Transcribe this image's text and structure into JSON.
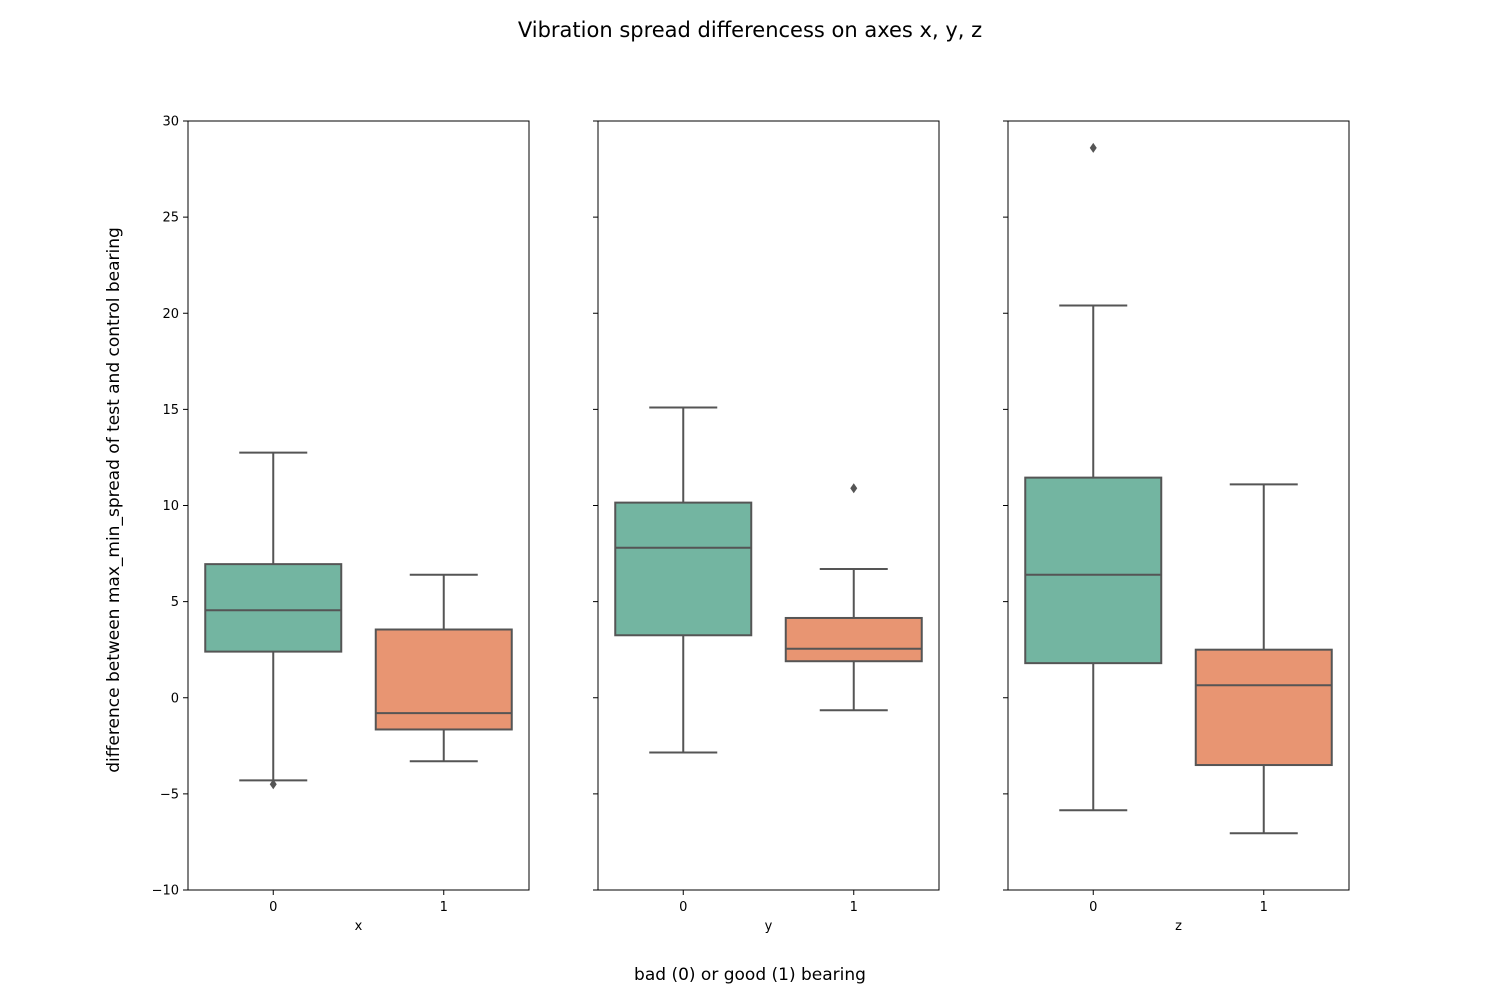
{
  "chart_data": {
    "type": "box",
    "title": "Vibration spread differencess on axes x, y, z",
    "xlabel": "bad (0) or good (1) bearing",
    "ylabel": "difference between max_min_spread of test and control bearing",
    "ylim": [
      -10,
      30
    ],
    "yticks": [
      -10,
      -5,
      0,
      5,
      10,
      15,
      20,
      25,
      30
    ],
    "ytick_labels": [
      "−10",
      "−5",
      "0",
      "5",
      "10",
      "15",
      "20",
      "25",
      "30"
    ],
    "shared_y": true,
    "grid": false,
    "categories": [
      "0",
      "1"
    ],
    "colors": {
      "bad": "#73b5a1",
      "good": "#e89572",
      "line": "#555555"
    },
    "panels": [
      {
        "xlabel": "x",
        "boxes": [
          {
            "category": "0",
            "whisker_low": -4.3,
            "q1": 2.4,
            "median": 4.55,
            "q3": 6.95,
            "whisker_high": 12.75,
            "outliers": [
              -4.5
            ]
          },
          {
            "category": "1",
            "whisker_low": -3.3,
            "q1": -1.65,
            "median": -0.8,
            "q3": 3.55,
            "whisker_high": 6.4,
            "outliers": []
          }
        ]
      },
      {
        "xlabel": "y",
        "boxes": [
          {
            "category": "0",
            "whisker_low": -2.85,
            "q1": 3.25,
            "median": 7.8,
            "q3": 10.15,
            "whisker_high": 15.1,
            "outliers": []
          },
          {
            "category": "1",
            "whisker_low": -0.65,
            "q1": 1.9,
            "median": 2.55,
            "q3": 4.15,
            "whisker_high": 6.7,
            "outliers": [
              10.9
            ]
          }
        ]
      },
      {
        "xlabel": "z",
        "boxes": [
          {
            "category": "0",
            "whisker_low": -5.85,
            "q1": 1.8,
            "median": 6.4,
            "q3": 11.45,
            "whisker_high": 20.4,
            "outliers": [
              28.6
            ]
          },
          {
            "category": "1",
            "whisker_low": -7.05,
            "q1": -3.5,
            "median": 0.65,
            "q3": 2.5,
            "whisker_high": 11.1,
            "outliers": []
          }
        ]
      }
    ]
  }
}
